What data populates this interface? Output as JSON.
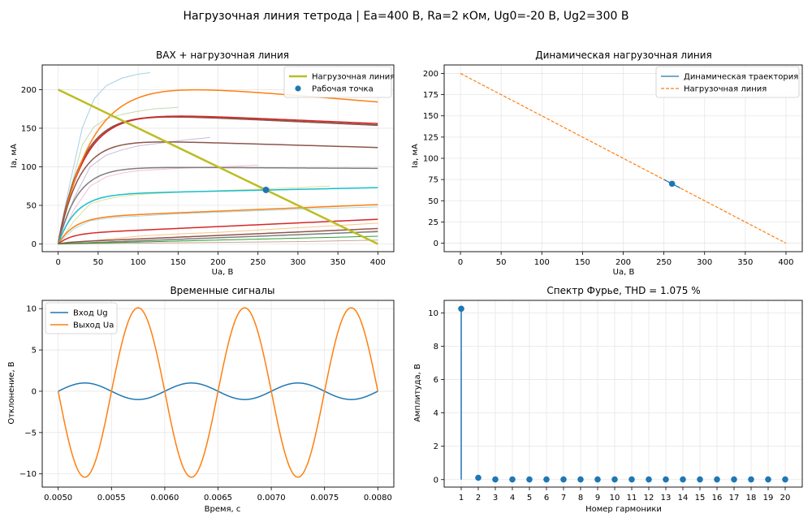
{
  "suptitle": "Нагрузочная линия тетрода | Ea=400 В, Ra=2 кОм, Ug0=-20 В, Ug2=300 В",
  "colors": {
    "tab_blue": "#1f77b4",
    "tab_orange": "#ff7f0e",
    "olive": "#bcbd22",
    "grid": "#e6e6e6"
  },
  "chart_data": [
    {
      "type": "line",
      "title": "ВАХ + нагрузочная линия",
      "xlabel": "Ua, В",
      "ylabel": "Ia, мА",
      "xlim": [
        -20,
        420
      ],
      "ylim": [
        -10,
        232
      ],
      "xticks": [
        0,
        50,
        100,
        150,
        200,
        250,
        300,
        350,
        400
      ],
      "yticks": [
        0,
        50,
        100,
        150,
        200
      ],
      "grid": true,
      "legend": {
        "position": "top-right",
        "entries": [
          "Нагрузочная линия",
          "Рабочая точка"
        ]
      },
      "characteristics": [
        {
          "color": "#8c564b",
          "sat": 173,
          "knee": 30,
          "decline": 19,
          "width": 2.0
        },
        {
          "color": "#d62728",
          "sat": 174,
          "knee": 32,
          "decline": 18,
          "width": 1.5
        },
        {
          "color": "#ff7f0e",
          "sat": 218,
          "knee": 42,
          "decline": 34,
          "width": 1.5
        },
        {
          "color": "#8c564b",
          "sat": 137,
          "knee": 26,
          "decline": 12,
          "width": 1.5
        },
        {
          "color": "#7f7f7f",
          "sat": 100,
          "knee": 24,
          "decline": 2,
          "width": 1.5
        },
        {
          "color": "#17becf",
          "sat": 64,
          "knee": 22,
          "decline": -9,
          "width": 1.5
        },
        {
          "color": "#ff7f0e",
          "sat": 34,
          "knee": 20,
          "decline": -17,
          "width": 1.5
        },
        {
          "color": "#d62728",
          "sat": 13,
          "knee": 16,
          "decline": -19,
          "width": 1.5
        },
        {
          "color": "#8c564b",
          "sat": 2,
          "knee": 12,
          "decline": -18,
          "width": 1.5
        },
        {
          "color": "#7f7f7f",
          "sat": 0,
          "knee": 10,
          "decline": -16,
          "width": 1.5
        },
        {
          "color": "#2ca02c",
          "sat": 0,
          "knee": 10,
          "decline": -10,
          "width": 1.0
        }
      ],
      "thin_curves": [
        {
          "color": "#9ecae1",
          "x": [
            0,
            15,
            30,
            45,
            60,
            80,
            100,
            115
          ],
          "y": [
            5,
            80,
            150,
            188,
            205,
            215,
            220,
            222
          ]
        },
        {
          "color": "#bcd8a0",
          "x": [
            0,
            15,
            30,
            45,
            60,
            80,
            100,
            120,
            150
          ],
          "y": [
            4,
            70,
            128,
            152,
            162,
            168,
            172,
            175,
            177
          ]
        },
        {
          "color": "#c5b0d5",
          "x": [
            0,
            20,
            40,
            60,
            80,
            100,
            130,
            160,
            190
          ],
          "y": [
            3,
            60,
            100,
            115,
            122,
            127,
            131,
            135,
            138
          ]
        },
        {
          "color": "#f4b6d2",
          "x": [
            0,
            20,
            40,
            60,
            80,
            100,
            150,
            200,
            250
          ],
          "y": [
            2,
            45,
            75,
            87,
            92,
            95,
            98,
            100,
            102
          ]
        },
        {
          "color": "#dbdb8d",
          "x": [
            0,
            20,
            40,
            60,
            80,
            100,
            150,
            200,
            250,
            300,
            340
          ],
          "y": [
            1,
            30,
            52,
            58,
            62,
            64,
            67,
            69,
            71,
            73,
            75
          ]
        },
        {
          "color": "#9edae5",
          "x": [
            0,
            20,
            40,
            60,
            80,
            100,
            150,
            200,
            300,
            400
          ],
          "y": [
            1,
            20,
            30,
            33,
            35,
            36,
            39,
            41,
            45,
            48
          ]
        },
        {
          "color": "#ffbb78",
          "x": [
            0,
            50,
            100,
            150,
            200,
            250,
            300,
            350,
            400
          ],
          "y": [
            0,
            5,
            10,
            13,
            15,
            18,
            21,
            24,
            27
          ]
        },
        {
          "color": "#ff9896",
          "x": [
            0,
            50,
            100,
            150,
            200,
            250,
            300,
            350,
            400
          ],
          "y": [
            0,
            2,
            4,
            6,
            8,
            10,
            12,
            14,
            17
          ]
        },
        {
          "color": "#c49c94",
          "x": [
            0,
            100,
            200,
            300,
            400
          ],
          "y": [
            0,
            1,
            2,
            3,
            5
          ]
        }
      ],
      "series": [
        {
          "name": "Нагрузочная линия",
          "x": [
            0,
            400
          ],
          "y": [
            200,
            0
          ]
        },
        {
          "name": "Рабочая точка",
          "x": [
            260
          ],
          "y": [
            70
          ]
        }
      ]
    },
    {
      "type": "line",
      "title": "Динамическая нагрузочная линия",
      "xlabel": "Ua, В",
      "ylabel": "Ia, мА",
      "xlim": [
        -20,
        420
      ],
      "ylim": [
        -10,
        210
      ],
      "xticks": [
        0,
        50,
        100,
        150,
        200,
        250,
        300,
        350,
        400
      ],
      "yticks": [
        0,
        25,
        50,
        75,
        100,
        125,
        150,
        175,
        200
      ],
      "grid": true,
      "legend": {
        "position": "top-right",
        "entries": [
          "Динамическая траектория",
          "Нагрузочная линия"
        ]
      },
      "series": [
        {
          "name": "Динамическая траектория",
          "x": [
            250,
            270
          ],
          "y": [
            75,
            65
          ]
        },
        {
          "name": "Нагрузочная линия",
          "x": [
            0,
            400
          ],
          "y": [
            200,
            0
          ]
        }
      ],
      "point": {
        "x": 260,
        "y": 70
      }
    },
    {
      "type": "line",
      "title": "Временные сигналы",
      "xlabel": "Время, с",
      "ylabel": "Отклонение, В",
      "xlim": [
        0.00485,
        0.00815
      ],
      "ylim": [
        -11.6,
        11.0
      ],
      "xticks": [
        0.005,
        0.0055,
        0.006,
        0.0065,
        0.007,
        0.0075,
        0.008
      ],
      "xticklabels": [
        "0.0050",
        "0.0055",
        "0.0060",
        "0.0065",
        "0.0070",
        "0.0075",
        "0.0080"
      ],
      "yticks": [
        -10,
        -5,
        0,
        5,
        10
      ],
      "yticklabels": [
        "−10",
        "−5",
        "0",
        "5",
        "10"
      ],
      "grid": true,
      "legend": {
        "position": "top-left",
        "entries": [
          "Вход Ug",
          "Выход Ua"
        ]
      },
      "series": [
        {
          "name": "Вход Ug",
          "function": "sin",
          "amplitude": 1.0,
          "frequency_hz": 1000,
          "t_start": 0.005,
          "t_end": 0.008
        },
        {
          "name": "Выход Ua",
          "function": "-sin",
          "amplitude_pos": 10.1,
          "amplitude_neg": 10.4,
          "frequency_hz": 1000,
          "t_start": 0.005,
          "t_end": 0.008
        }
      ]
    },
    {
      "type": "stem",
      "title": "Спектр Фурье, THD = 1.075 %",
      "xlabel": "Номер гармоники",
      "ylabel": "Амплитуда, В",
      "xlim": [
        0,
        21
      ],
      "ylim": [
        -0.45,
        10.75
      ],
      "xticks": [
        1,
        2,
        3,
        4,
        5,
        6,
        7,
        8,
        9,
        10,
        11,
        12,
        13,
        14,
        15,
        16,
        17,
        18,
        19,
        20
      ],
      "yticks": [
        0,
        2,
        4,
        6,
        8,
        10
      ],
      "grid": true,
      "categories": [
        1,
        2,
        3,
        4,
        5,
        6,
        7,
        8,
        9,
        10,
        11,
        12,
        13,
        14,
        15,
        16,
        17,
        18,
        19,
        20
      ],
      "values": [
        10.25,
        0.11,
        0.01,
        0.01,
        0.01,
        0.01,
        0.01,
        0.01,
        0.01,
        0.01,
        0.01,
        0.01,
        0.01,
        0.01,
        0.01,
        0.01,
        0.01,
        0.01,
        0.01,
        0.01
      ]
    }
  ]
}
